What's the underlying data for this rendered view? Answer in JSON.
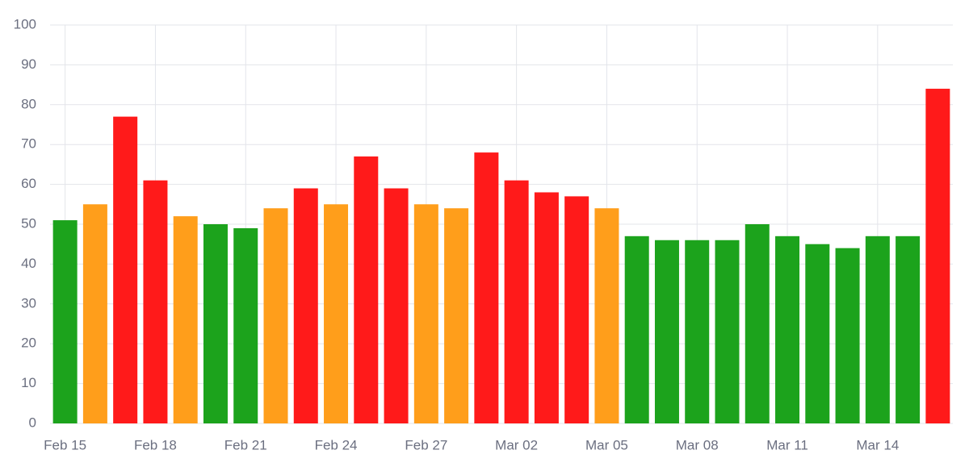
{
  "chart_data": {
    "type": "bar",
    "categories": [
      "Feb 15",
      null,
      null,
      "Feb 18",
      null,
      null,
      "Feb 21",
      null,
      null,
      "Feb 24",
      null,
      null,
      "Feb 27",
      null,
      null,
      "Mar 02",
      null,
      null,
      "Mar 05",
      null,
      null,
      "Mar 08",
      null,
      null,
      "Mar 11",
      null,
      null,
      "Mar 14",
      null,
      null
    ],
    "values": [
      51,
      55,
      77,
      61,
      52,
      50,
      49,
      54,
      59,
      55,
      67,
      59,
      55,
      54,
      68,
      61,
      58,
      57,
      54,
      47,
      46,
      46,
      46,
      50,
      47,
      45,
      44,
      47,
      47,
      84
    ],
    "colors": [
      "#1ca31c",
      "#ff9e1b",
      "#ff1a1a",
      "#ff1a1a",
      "#ff9e1b",
      "#1ca31c",
      "#1ca31c",
      "#ff9e1b",
      "#ff1a1a",
      "#ff9e1b",
      "#ff1a1a",
      "#ff1a1a",
      "#ff9e1b",
      "#ff9e1b",
      "#ff1a1a",
      "#ff1a1a",
      "#ff1a1a",
      "#ff1a1a",
      "#ff9e1b",
      "#1ca31c",
      "#1ca31c",
      "#1ca31c",
      "#1ca31c",
      "#1ca31c",
      "#1ca31c",
      "#1ca31c",
      "#1ca31c",
      "#1ca31c",
      "#1ca31c",
      "#ff1a1a"
    ],
    "ylim": [
      0,
      100
    ],
    "yticks": [
      0,
      10,
      20,
      30,
      40,
      50,
      60,
      70,
      80,
      90,
      100
    ],
    "grid": true
  }
}
